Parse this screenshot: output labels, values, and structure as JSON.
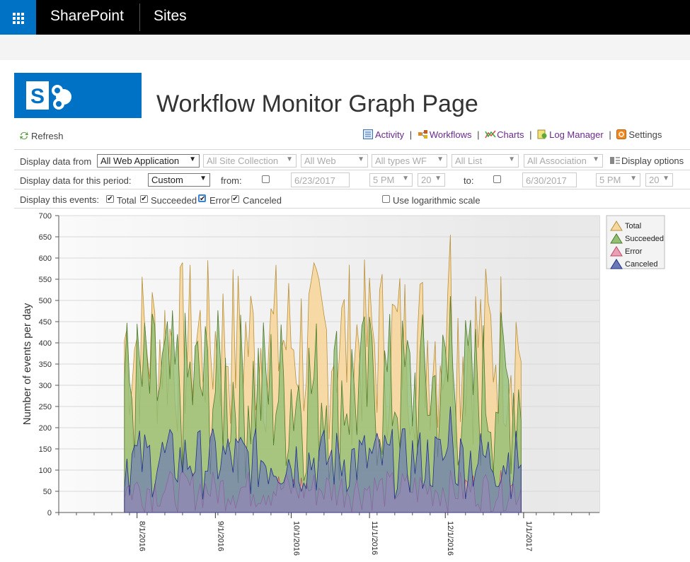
{
  "suite": {
    "brand": "SharePoint",
    "sites": "Sites"
  },
  "page": {
    "title": "Workflow Monitor Graph Page"
  },
  "toolbar": {
    "refresh": "Refresh"
  },
  "nav": {
    "activity": "Activity",
    "workflows": "Workflows",
    "charts": "Charts",
    "log_manager": "Log Manager",
    "settings": "Settings",
    "sep": "|"
  },
  "filters": {
    "label_from": "Display data from",
    "web_application": "All Web Application",
    "site_collection": "All Site Collection",
    "web": "All Web",
    "types": "All types WF",
    "list": "All List",
    "association": "All Association",
    "display_options": "Display options"
  },
  "period": {
    "label": "Display data for this period:",
    "value": "Custom",
    "from_label": "from:",
    "from_date": "6/23/2017",
    "from_hour": "5 PM",
    "from_min": "20",
    "to_label": "to:",
    "to_date": "6/30/2017",
    "to_hour": "5 PM",
    "to_min": "20"
  },
  "events": {
    "label": "Display this events:",
    "total": "Total",
    "succeeded": "Succeeded",
    "error": "Error",
    "canceled": "Canceled",
    "log_scale": "Use logarithmic scale",
    "checkmark": "✔"
  },
  "colors": {
    "total": "#f5d7a0",
    "succeeded": "#93bf75",
    "error": "#e8a0b4",
    "canceled": "#6a78b8",
    "overlap": "#7c4f86",
    "brand": "#0072c6"
  },
  "chart_data": {
    "type": "area",
    "ylabel": "Number of events per day",
    "ylim": [
      0,
      700
    ],
    "yticks": [
      0,
      50,
      100,
      150,
      200,
      250,
      300,
      350,
      400,
      450,
      500,
      550,
      600,
      650,
      700
    ],
    "xticks": [
      "8/1/2016",
      "9/1/2016",
      "10/1/2016",
      "11/1/2016",
      "12/1/2016",
      "1/1/2017"
    ],
    "xrange": [
      "2016-07-01",
      "2017-01-31"
    ],
    "data_range": [
      "2016-07-27",
      "2016-12-31"
    ],
    "legend": [
      "Total",
      "Succeeded",
      "Error",
      "Canceled"
    ],
    "legend_position": "top-right",
    "series": [
      {
        "name": "Total",
        "peak": 655,
        "typical": [
          150,
          600
        ]
      },
      {
        "name": "Succeeded",
        "peak": 510,
        "typical": [
          50,
          480
        ]
      },
      {
        "name": "Error",
        "peak": 100,
        "typical": [
          0,
          100
        ]
      },
      {
        "name": "Canceled",
        "peak": 250,
        "typical": [
          30,
          200
        ]
      }
    ]
  }
}
